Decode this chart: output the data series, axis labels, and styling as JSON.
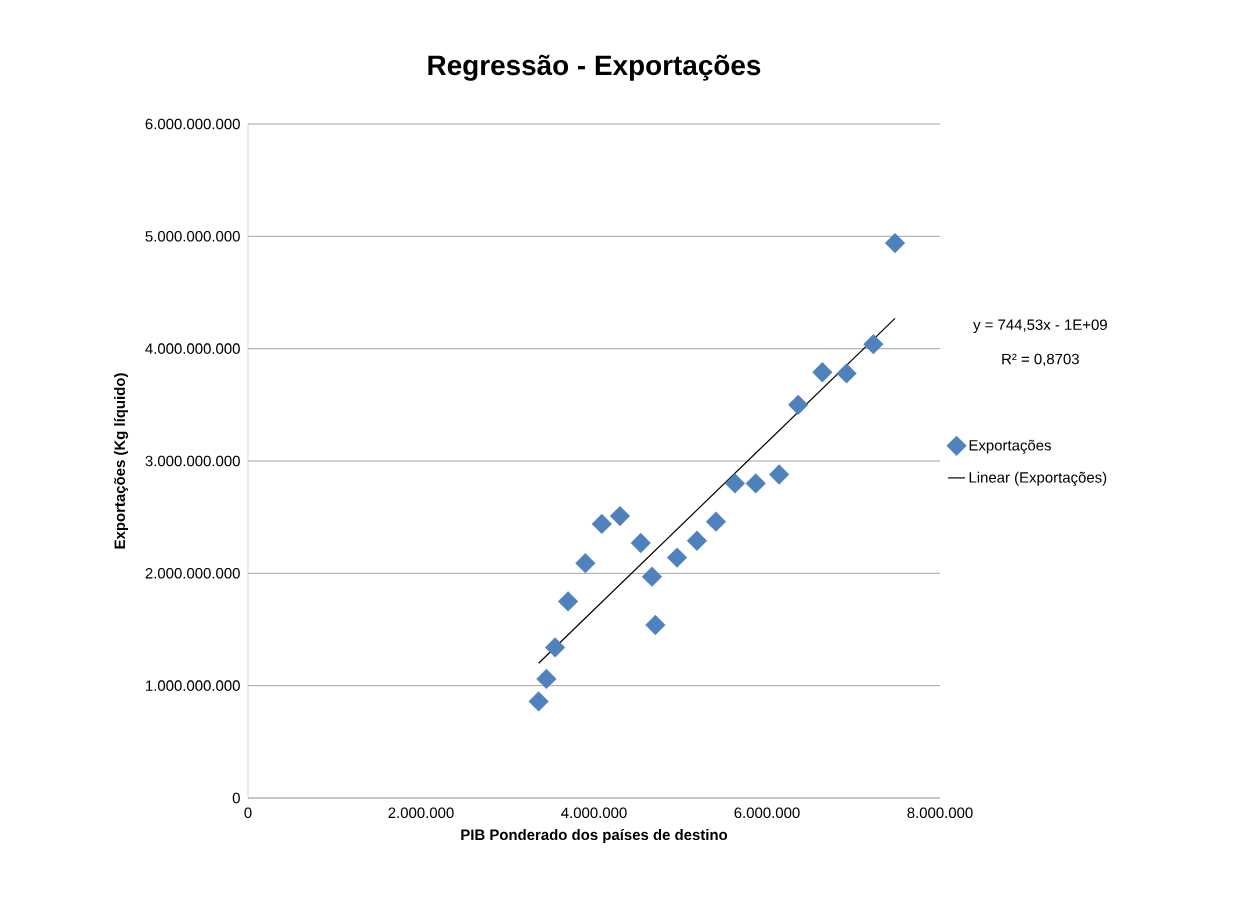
{
  "chart_data": {
    "type": "scatter",
    "title": "Regressão - Exportações",
    "xlabel": "PIB Ponderado dos países de destino",
    "ylabel": "Exportações (Kg líquido)",
    "series": [
      {
        "name": "Exportações",
        "color": "#4f81bd",
        "marker": "diamond",
        "x": [
          3360000,
          3450000,
          3550000,
          3700000,
          3900000,
          4090000,
          4300000,
          4540000,
          4670000,
          4710000,
          4960000,
          5190000,
          5410000,
          5630000,
          5870000,
          6140000,
          6360000,
          6640000,
          6920000,
          7230000,
          7480000
        ],
        "values": [
          860000000,
          1060000000,
          1340000000,
          1750000000,
          2090000000,
          2440000000,
          2510000000,
          2270000000,
          1970000000,
          1540000000,
          2140000000,
          2290000000,
          2460000000,
          2800000000,
          2800000000,
          2880000000,
          3500000000,
          3790000000,
          3780000000,
          4040000000,
          4940000000
        ]
      },
      {
        "name": "Linear (Exportações)",
        "type": "line",
        "color": "#000000",
        "marker": "none",
        "x": [
          3360000,
          7480000
        ],
        "values": [
          1200000000,
          4270000000
        ]
      }
    ],
    "annotations": [
      "y = 744,53x - 1E+09",
      "R² = 0,8703"
    ],
    "xlim": [
      0,
      8000000
    ],
    "xticks": [
      0,
      {
        "value": 2000000,
        "label": "2.000.000"
      },
      {
        "value": 4000000,
        "label": "4.000.000"
      },
      {
        "value": 6000000,
        "label": "6.000.000"
      },
      {
        "value": 8000000,
        "label": "8.000.000"
      }
    ],
    "ylim": [
      0,
      6000000000
    ],
    "yticks": [
      0,
      {
        "value": 1000000000,
        "label": "1.000.000.000"
      },
      {
        "value": 2000000000,
        "label": "2.000.000.000"
      },
      {
        "value": 3000000000,
        "label": "3.000.000.000"
      },
      {
        "value": 4000000000,
        "label": "4.000.000.000"
      },
      {
        "value": 5000000000,
        "label": "5.000.000.000"
      },
      {
        "value": 6000000000,
        "label": "6.000.000.000"
      }
    ],
    "grid": "y",
    "legend": "right"
  }
}
